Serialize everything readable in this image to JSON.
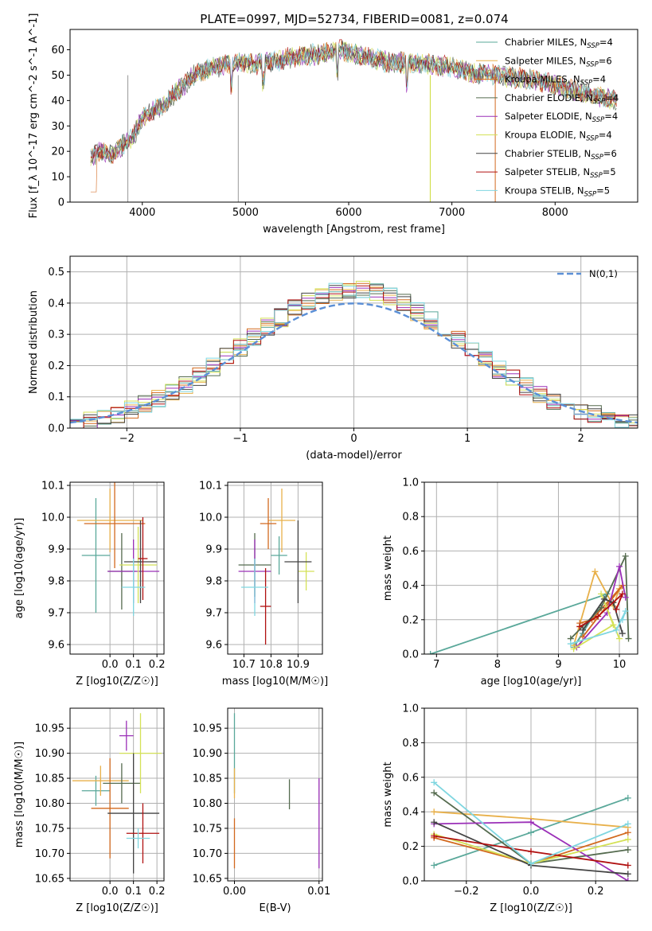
{
  "figure": {
    "title": "PLATE=0997, MJD=52734, FIBERID=0081, z=0.074"
  },
  "colors": {
    "series": [
      "#1f77b4",
      "#ff7f0e",
      "#2ca02c",
      "#d62728",
      "#9467bd",
      "#8c564b",
      "#e377c2",
      "#7f7f7f",
      "#bcbd22"
    ],
    "models": [
      "#5aa89a",
      "#e8b04a",
      "#d2691e",
      "#556b4f",
      "#9b30b8",
      "#d4e157",
      "#444444",
      "#b01010",
      "#7fd6e0"
    ],
    "grid": "#b0b0b0",
    "gauss": "#5b8fd6"
  },
  "chart_data": [
    {
      "id": "spectrum",
      "type": "line",
      "title": "PLATE=0997, MJD=52734, FIBERID=0081, z=0.074",
      "xlabel": "wavelength [Angstrom, rest frame]",
      "ylabel": "Flux [f_λ 10^-17 erg cm^-2 s^-1 A^-1]",
      "xlim": [
        3300,
        8800
      ],
      "ylim": [
        0,
        68
      ],
      "xticks": [
        "4000",
        "5000",
        "6000",
        "7000",
        "8000"
      ],
      "yticks": [
        "0",
        "10",
        "20",
        "30",
        "40",
        "50",
        "60"
      ],
      "grid": false,
      "legend_position": "top-right",
      "legend": [
        "Chabrier MILES, N_SSP=4",
        "Salpeter MILES, N_SSP=6",
        "Kroupa MILES, N_SSP=4",
        "Chabrier ELODIE, N_SSP=4",
        "Salpeter ELODIE, N_SSP=4",
        "Kroupa ELODIE, N_SSP=4",
        "Chabrier STELIB, N_SSP=6",
        "Salpeter STELIB, N_SSP=5",
        "Kroupa STELIB, N_SSP=5"
      ],
      "envelope": {
        "x": [
          3500,
          3600,
          3700,
          3800,
          3900,
          4000,
          4100,
          4200,
          4300,
          4400,
          4500,
          4600,
          4700,
          4800,
          4900,
          5000,
          5100,
          5200,
          5300,
          5400,
          5500,
          5600,
          5700,
          5800,
          5900,
          6000,
          6200,
          6400,
          6600,
          6800,
          7000,
          7200,
          7400,
          7600,
          7800,
          8000,
          8200,
          8400,
          8600
        ],
        "y": [
          18,
          20,
          19,
          22,
          25,
          33,
          36,
          38,
          42,
          46,
          50,
          52,
          53,
          54,
          55,
          55,
          54,
          56,
          55,
          57,
          57,
          58,
          58,
          59,
          60,
          59,
          57,
          55,
          55,
          54,
          53,
          51,
          50,
          49,
          48,
          46,
          44,
          42,
          40
        ]
      }
    },
    {
      "id": "residuals",
      "type": "line",
      "xlabel": "(data-model)/error",
      "ylabel": "Normed distribution",
      "xlim": [
        -2.5,
        2.5
      ],
      "ylim": [
        0,
        0.55
      ],
      "xticks": [
        "−2",
        "−1",
        "0",
        "1",
        "2"
      ],
      "yticks": [
        "0.0",
        "0.1",
        "0.2",
        "0.3",
        "0.4",
        "0.5"
      ],
      "grid": true,
      "legend_position": "top-right",
      "legend": [
        "N(0,1)"
      ],
      "gaussian": {
        "mean": 0,
        "sigma": 1
      }
    },
    {
      "id": "age-vs-Z",
      "type": "scatter",
      "xlabel": "Z [log10(Z/Z☉)]",
      "ylabel": "age  [log10(age/yr)]",
      "xlim": [
        -0.17,
        0.23
      ],
      "ylim": [
        9.57,
        10.11
      ],
      "xticks": [
        "0.0",
        "0.1",
        "0.2"
      ],
      "yticks": [
        "9.6",
        "9.7",
        "9.8",
        "9.9",
        "10.0",
        "10.1"
      ],
      "grid": true,
      "points": [
        {
          "x": -0.06,
          "y": 9.88,
          "xerr": 0.06,
          "yerr": 0.18
        },
        {
          "x": 0.0,
          "y": 9.99,
          "xerr": 0.14,
          "yerr": 0.1
        },
        {
          "x": 0.02,
          "y": 9.98,
          "xerr": 0.13,
          "yerr": 0.14
        },
        {
          "x": 0.05,
          "y": 9.83,
          "xerr": 0.06,
          "yerr": 0.12
        },
        {
          "x": 0.1,
          "y": 9.83,
          "xerr": 0.11,
          "yerr": 0.1
        },
        {
          "x": 0.12,
          "y": 9.85,
          "xerr": 0.08,
          "yerr": 0.12
        },
        {
          "x": 0.13,
          "y": 9.86,
          "xerr": 0.07,
          "yerr": 0.13
        },
        {
          "x": 0.14,
          "y": 9.87,
          "xerr": 0.02,
          "yerr": 0.13
        },
        {
          "x": 0.1,
          "y": 9.78,
          "xerr": 0.05,
          "yerr": 0.09
        }
      ]
    },
    {
      "id": "age-vs-mass",
      "type": "scatter",
      "xlabel": "mass [log10(M/M☉)]",
      "ylabel": "",
      "xlim": [
        10.64,
        10.99
      ],
      "ylim": [
        9.57,
        10.11
      ],
      "xticks": [
        "10.7",
        "10.8",
        "10.9"
      ],
      "yticks": [
        "9.6",
        "9.7",
        "9.8",
        "9.9",
        "10.0",
        "10.1"
      ],
      "grid": true,
      "points": [
        {
          "x": 10.83,
          "y": 9.88,
          "xerr": 0.03,
          "yerr": 0.06
        },
        {
          "x": 10.84,
          "y": 9.99,
          "xerr": 0.05,
          "yerr": 0.1
        },
        {
          "x": 10.79,
          "y": 9.98,
          "xerr": 0.03,
          "yerr": 0.08
        },
        {
          "x": 10.74,
          "y": 9.85,
          "xerr": 0.06,
          "yerr": 0.1
        },
        {
          "x": 10.74,
          "y": 9.83,
          "xerr": 0.06,
          "yerr": 0.1
        },
        {
          "x": 10.93,
          "y": 9.83,
          "xerr": 0.03,
          "yerr": 0.06
        },
        {
          "x": 10.9,
          "y": 9.86,
          "xerr": 0.05,
          "yerr": 0.13
        },
        {
          "x": 10.78,
          "y": 9.72,
          "xerr": 0.02,
          "yerr": 0.12
        },
        {
          "x": 10.74,
          "y": 9.78,
          "xerr": 0.05,
          "yerr": 0.09
        }
      ]
    },
    {
      "id": "weight-vs-age",
      "type": "line",
      "xlabel": "age  [log10(age/yr)]",
      "ylabel": "mass weight",
      "xlim": [
        6.8,
        10.3
      ],
      "ylim": [
        0,
        1.0
      ],
      "xticks": [
        "7",
        "8",
        "9",
        "10"
      ],
      "yticks": [
        "0.0",
        "0.2",
        "0.4",
        "0.6",
        "0.8",
        "1.0"
      ],
      "grid": true,
      "series": [
        {
          "x": [
            6.9,
            9.8,
            9.25,
            9.4
          ],
          "y": [
            0.0,
            0.35,
            0.04,
            0.12
          ]
        },
        {
          "x": [
            9.25,
            9.6,
            9.9,
            10.0
          ],
          "y": [
            0.05,
            0.48,
            0.28,
            0.38
          ]
        },
        {
          "x": [
            9.35,
            9.55,
            10.05,
            9.4
          ],
          "y": [
            0.18,
            0.2,
            0.4,
            0.1
          ]
        },
        {
          "x": [
            9.2,
            9.7,
            10.1,
            10.15
          ],
          "y": [
            0.09,
            0.27,
            0.57,
            0.09
          ]
        },
        {
          "x": [
            9.3,
            9.8,
            10.0,
            10.1
          ],
          "y": [
            0.04,
            0.24,
            0.51,
            0.33
          ]
        },
        {
          "x": [
            9.25,
            9.9,
            9.7,
            10.0
          ],
          "y": [
            0.03,
            0.17,
            0.35,
            0.09
          ]
        },
        {
          "x": [
            9.4,
            9.75,
            9.9,
            10.05
          ],
          "y": [
            0.14,
            0.32,
            0.3,
            0.12
          ]
        },
        {
          "x": [
            9.35,
            9.65,
            10.05,
            9.95
          ],
          "y": [
            0.16,
            0.22,
            0.35,
            0.26
          ]
        },
        {
          "x": [
            9.2,
            9.95,
            10.1,
            10.05
          ],
          "y": [
            0.06,
            0.14,
            0.25,
            0.2
          ]
        }
      ]
    },
    {
      "id": "mass-vs-Z",
      "type": "scatter",
      "xlabel": "Z [log10(Z/Z☉)]",
      "ylabel": "mass [log10(M/M☉)]",
      "xlim": [
        -0.17,
        0.23
      ],
      "ylim": [
        10.645,
        10.99
      ],
      "xticks": [
        "0.0",
        "0.1",
        "0.2"
      ],
      "yticks": [
        "10.65",
        "10.70",
        "10.75",
        "10.80",
        "10.85",
        "10.90",
        "10.95"
      ],
      "grid": true,
      "points": [
        {
          "x": -0.06,
          "y": 10.825,
          "xerr": 0.06,
          "yerr": 0.03
        },
        {
          "x": -0.04,
          "y": 10.845,
          "xerr": 0.12,
          "yerr": 0.03
        },
        {
          "x": 0.0,
          "y": 10.79,
          "xerr": 0.08,
          "yerr": 0.1
        },
        {
          "x": 0.05,
          "y": 10.84,
          "xerr": 0.08,
          "yerr": 0.04
        },
        {
          "x": 0.07,
          "y": 10.935,
          "xerr": 0.03,
          "yerr": 0.03
        },
        {
          "x": 0.13,
          "y": 10.9,
          "xerr": 0.09,
          "yerr": 0.08
        },
        {
          "x": 0.1,
          "y": 10.78,
          "xerr": 0.11,
          "yerr": 0.12
        },
        {
          "x": 0.14,
          "y": 10.74,
          "xerr": 0.07,
          "yerr": 0.06
        },
        {
          "x": 0.12,
          "y": 10.73,
          "xerr": 0.05,
          "yerr": 0.02
        }
      ]
    },
    {
      "id": "mass-vs-ebv",
      "type": "scatter",
      "xlabel": "E(B-V)",
      "ylabel": "",
      "xlim": [
        -0.0008,
        0.0104
      ],
      "ylim": [
        10.645,
        10.99
      ],
      "xticks": [
        "0.00",
        "0.01"
      ],
      "yticks": [
        "10.65",
        "10.70",
        "10.75",
        "10.80",
        "10.85",
        "10.90",
        "10.95"
      ],
      "grid": true,
      "points": [
        {
          "x": 0.0,
          "y": 10.9,
          "yerr": 0.08
        },
        {
          "x": 0.0,
          "y": 10.84,
          "yerr": 0.03
        },
        {
          "x": 0.0,
          "y": 10.72,
          "yerr": 0.05
        },
        {
          "x": 0.0065,
          "y": 10.818,
          "yerr": 0.03
        },
        {
          "x": 0.01,
          "y": 10.76,
          "yerr": 0.09
        }
      ]
    },
    {
      "id": "weight-vs-Z",
      "type": "line",
      "xlabel": "Z [log10(Z/Z☉)]",
      "ylabel": "mass weight",
      "xlim": [
        -0.33,
        0.33
      ],
      "ylim": [
        0,
        1.0
      ],
      "xticks": [
        "−0.2",
        "0.0",
        "0.2"
      ],
      "yticks": [
        "0.0",
        "0.2",
        "0.4",
        "0.6",
        "0.8",
        "1.0"
      ],
      "grid": true,
      "series": [
        {
          "x": [
            -0.3,
            0.0,
            0.3
          ],
          "y": [
            0.09,
            0.28,
            0.48
          ]
        },
        {
          "x": [
            -0.3,
            0.0,
            0.3
          ],
          "y": [
            0.4,
            0.36,
            0.31
          ]
        },
        {
          "x": [
            -0.3,
            0.0,
            0.3
          ],
          "y": [
            0.25,
            0.1,
            0.28
          ]
        },
        {
          "x": [
            -0.3,
            0.0,
            0.3
          ],
          "y": [
            0.51,
            0.1,
            0.18
          ]
        },
        {
          "x": [
            -0.3,
            0.0,
            0.3
          ],
          "y": [
            0.33,
            0.34,
            0.0
          ]
        },
        {
          "x": [
            -0.3,
            0.0,
            0.3
          ],
          "y": [
            0.27,
            0.1,
            0.24
          ]
        },
        {
          "x": [
            -0.3,
            0.0,
            0.3
          ],
          "y": [
            0.34,
            0.09,
            0.04
          ]
        },
        {
          "x": [
            -0.3,
            0.0,
            0.3
          ],
          "y": [
            0.26,
            0.17,
            0.09
          ]
        },
        {
          "x": [
            -0.3,
            0.0,
            0.3
          ],
          "y": [
            0.57,
            0.1,
            0.33
          ]
        }
      ]
    }
  ]
}
